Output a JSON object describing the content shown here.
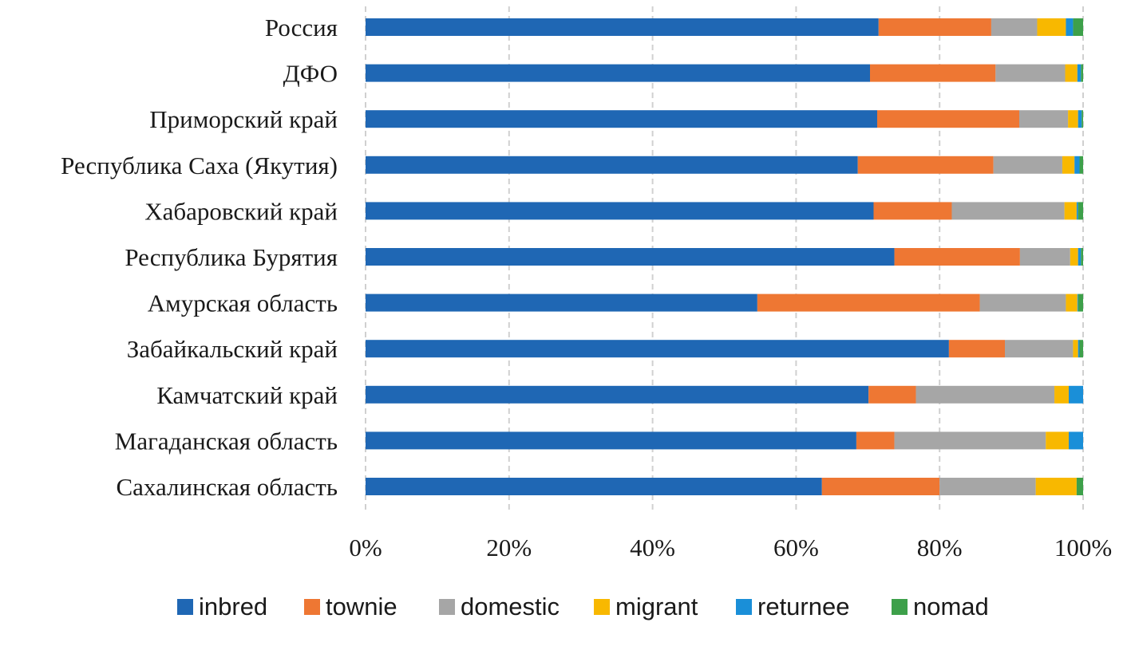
{
  "chart_data": {
    "type": "bar",
    "orientation": "horizontal",
    "stacked": "percent",
    "categories": [
      "Россия",
      "ДФО",
      "Приморский край",
      "Республика Саха (Якутия)",
      "Хабаровский край",
      "Республика Бурятия",
      "Амурская область",
      "Забайкальский край",
      "Камчатский край",
      "Магаданская область",
      "Сахалинская область"
    ],
    "series": [
      {
        "name": "inbred",
        "color": "#1f67b4",
        "values": [
          71.5,
          70.3,
          71.3,
          68.6,
          70.8,
          73.7,
          54.6,
          81.3,
          70.1,
          68.4,
          63.6
        ]
      },
      {
        "name": "townie",
        "color": "#ee7733",
        "values": [
          15.7,
          17.5,
          19.8,
          18.9,
          10.9,
          17.5,
          31.0,
          7.8,
          6.6,
          5.3,
          16.4
        ]
      },
      {
        "name": "domestic",
        "color": "#a6a6a6",
        "values": [
          6.4,
          9.7,
          6.8,
          9.6,
          15.7,
          7.0,
          12.0,
          9.5,
          19.3,
          21.1,
          13.4
        ]
      },
      {
        "name": "migrant",
        "color": "#f8b800",
        "values": [
          4.0,
          1.7,
          1.4,
          1.7,
          1.7,
          1.1,
          1.6,
          0.7,
          2.0,
          3.2,
          5.7
        ]
      },
      {
        "name": "returnee",
        "color": "#1a8fd8",
        "values": [
          1.0,
          0.5,
          0.5,
          0.7,
          0.2,
          0.4,
          0.1,
          0.2,
          2.0,
          2.0,
          0.0
        ]
      },
      {
        "name": "nomad",
        "color": "#3da04a",
        "values": [
          1.4,
          0.3,
          0.2,
          0.5,
          0.7,
          0.3,
          0.7,
          0.5,
          0.0,
          0.0,
          0.9
        ]
      }
    ],
    "xlim": [
      0,
      100
    ],
    "x_ticks": [
      "0%",
      "20%",
      "40%",
      "60%",
      "80%",
      "100%"
    ],
    "grid": true,
    "grid_style": "dashed-vertical",
    "legend_position": "bottom",
    "title": "",
    "xlabel": "",
    "ylabel": ""
  }
}
